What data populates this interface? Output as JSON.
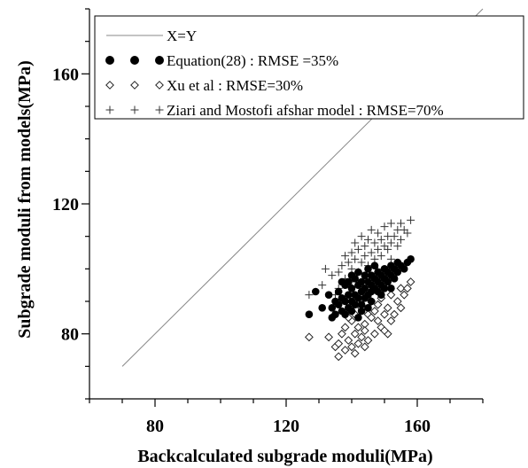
{
  "chart_data": {
    "type": "scatter",
    "xlabel": "Backcalculated subgrade moduli(MPa)",
    "ylabel": "Subgrade moduli from models(MPa)",
    "xlim": [
      60,
      180
    ],
    "ylim": [
      60,
      180
    ],
    "xticks": [
      80,
      120,
      160
    ],
    "yticks": [
      80,
      120,
      160
    ],
    "legend_position": "top-left",
    "reference_line": {
      "name": "X=Y",
      "x": [
        70,
        180
      ],
      "y": [
        70,
        180
      ]
    },
    "series": [
      {
        "name": "Equation(28) : RMSE =35%",
        "marker": "filled-circle",
        "color": "#000000",
        "points": [
          [
            127,
            86
          ],
          [
            129,
            93
          ],
          [
            131,
            88
          ],
          [
            133,
            92
          ],
          [
            134,
            85
          ],
          [
            134,
            88
          ],
          [
            135,
            90
          ],
          [
            135,
            86
          ],
          [
            136,
            93
          ],
          [
            136,
            89
          ],
          [
            137,
            87
          ],
          [
            137,
            91
          ],
          [
            138,
            95
          ],
          [
            138,
            86
          ],
          [
            138,
            90
          ],
          [
            139,
            92
          ],
          [
            139,
            88
          ],
          [
            139,
            96
          ],
          [
            140,
            90
          ],
          [
            140,
            94
          ],
          [
            140,
            87
          ],
          [
            141,
            97
          ],
          [
            141,
            92
          ],
          [
            141,
            89
          ],
          [
            142,
            95
          ],
          [
            142,
            91
          ],
          [
            142,
            99
          ],
          [
            143,
            93
          ],
          [
            143,
            96
          ],
          [
            143,
            89
          ],
          [
            144,
            98
          ],
          [
            144,
            94
          ],
          [
            144,
            91
          ],
          [
            145,
            96
          ],
          [
            145,
            100
          ],
          [
            145,
            92
          ],
          [
            146,
            95
          ],
          [
            146,
            98
          ],
          [
            146,
            93
          ],
          [
            147,
            97
          ],
          [
            147,
            94
          ],
          [
            147,
            101
          ],
          [
            148,
            96
          ],
          [
            148,
            99
          ],
          [
            148,
            93
          ],
          [
            149,
            98
          ],
          [
            149,
            95
          ],
          [
            150,
            97
          ],
          [
            150,
            100
          ],
          [
            150,
            94
          ],
          [
            151,
            99
          ],
          [
            151,
            96
          ],
          [
            152,
            98
          ],
          [
            152,
            101
          ],
          [
            153,
            97
          ],
          [
            153,
            100
          ],
          [
            154,
            99
          ],
          [
            154,
            102
          ],
          [
            155,
            101
          ],
          [
            156,
            100
          ],
          [
            157,
            102
          ],
          [
            158,
            103
          ],
          [
            145,
            88
          ],
          [
            143,
            87
          ],
          [
            140,
            98
          ],
          [
            142,
            85
          ],
          [
            146,
            90
          ],
          [
            149,
            92
          ],
          [
            152,
            94
          ],
          [
            137,
            96
          ]
        ]
      },
      {
        "name": "Xu et al : RMSE=30%",
        "marker": "open-diamond",
        "color": "#000000",
        "points": [
          [
            127,
            79
          ],
          [
            133,
            79
          ],
          [
            135,
            76
          ],
          [
            136,
            73
          ],
          [
            136,
            77
          ],
          [
            137,
            80
          ],
          [
            138,
            75
          ],
          [
            138,
            82
          ],
          [
            139,
            78
          ],
          [
            140,
            76
          ],
          [
            140,
            84
          ],
          [
            141,
            80
          ],
          [
            141,
            86
          ],
          [
            142,
            77
          ],
          [
            142,
            82
          ],
          [
            143,
            79
          ],
          [
            143,
            88
          ],
          [
            144,
            83
          ],
          [
            144,
            81
          ],
          [
            145,
            86
          ],
          [
            145,
            78
          ],
          [
            146,
            85
          ],
          [
            146,
            90
          ],
          [
            147,
            80
          ],
          [
            147,
            87
          ],
          [
            148,
            84
          ],
          [
            148,
            89
          ],
          [
            149,
            82
          ],
          [
            149,
            91
          ],
          [
            150,
            86
          ],
          [
            151,
            80
          ],
          [
            151,
            88
          ],
          [
            152,
            84
          ],
          [
            152,
            92
          ],
          [
            153,
            86
          ],
          [
            154,
            90
          ],
          [
            155,
            94
          ],
          [
            155,
            88
          ],
          [
            156,
            92
          ],
          [
            157,
            94
          ],
          [
            158,
            96
          ],
          [
            139,
            85
          ],
          [
            144,
            76
          ],
          [
            150,
            81
          ],
          [
            141,
            74
          ]
        ]
      },
      {
        "name": "Ziari and Mostofi afshar model : RMSE=70%",
        "marker": "plus",
        "color": "#000000",
        "points": [
          [
            127,
            92
          ],
          [
            131,
            95
          ],
          [
            132,
            100
          ],
          [
            134,
            98
          ],
          [
            135,
            92
          ],
          [
            136,
            99
          ],
          [
            137,
            101
          ],
          [
            138,
            97
          ],
          [
            138,
            104
          ],
          [
            139,
            102
          ],
          [
            139,
            95
          ],
          [
            140,
            105
          ],
          [
            140,
            100
          ],
          [
            141,
            103
          ],
          [
            141,
            108
          ],
          [
            142,
            99
          ],
          [
            142,
            106
          ],
          [
            143,
            102
          ],
          [
            143,
            110
          ],
          [
            144,
            104
          ],
          [
            144,
            107
          ],
          [
            145,
            101
          ],
          [
            145,
            109
          ],
          [
            146,
            105
          ],
          [
            146,
            112
          ],
          [
            147,
            103
          ],
          [
            147,
            108
          ],
          [
            148,
            106
          ],
          [
            148,
            111
          ],
          [
            149,
            104
          ],
          [
            149,
            109
          ],
          [
            150,
            107
          ],
          [
            150,
            113
          ],
          [
            151,
            106
          ],
          [
            151,
            110
          ],
          [
            152,
            108
          ],
          [
            152,
            114
          ],
          [
            153,
            110
          ],
          [
            154,
            107
          ],
          [
            154,
            112
          ],
          [
            155,
            109
          ],
          [
            155,
            114
          ],
          [
            156,
            112
          ],
          [
            157,
            111
          ],
          [
            158,
            115
          ],
          [
            136,
            94
          ],
          [
            140,
            96
          ],
          [
            144,
            97
          ],
          [
            148,
            100
          ],
          [
            152,
            103
          ]
        ]
      }
    ]
  }
}
